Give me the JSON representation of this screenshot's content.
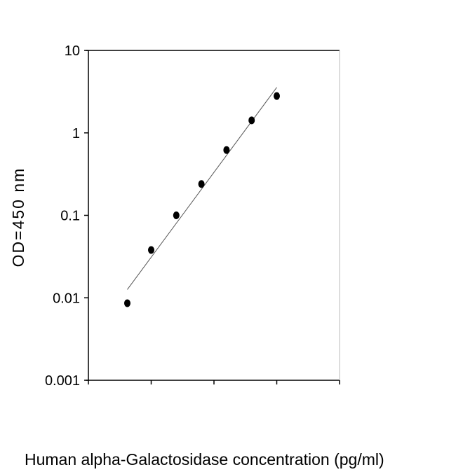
{
  "chart_data": {
    "type": "scatter",
    "title": "",
    "xlabel": "Human alpha-Galactosidase concentration (pg/ml)",
    "ylabel": "OD=450 nm",
    "y_scale": "log",
    "ylim": [
      0.001,
      10
    ],
    "y_ticks": [
      10,
      1,
      0.1,
      0.01,
      0.001
    ],
    "y_tick_labels": [
      "10",
      "1",
      "0.1",
      "0.01",
      "0.001"
    ],
    "x_tick_labels": [],
    "x_tick_count": 5,
    "grid": false,
    "legend": "none",
    "points": {
      "x": [
        0.62,
        1.0,
        1.4,
        1.8,
        2.2,
        2.6,
        3.0
      ],
      "y": [
        0.0086,
        0.038,
        0.1,
        0.24,
        0.62,
        1.42,
        2.8
      ]
    },
    "fit_line": {
      "x": [
        0.62,
        3.0
      ],
      "y": [
        0.0126,
        3.56
      ]
    },
    "colors": {
      "points": "#000000",
      "line": "#555555",
      "axes": "#000000"
    }
  }
}
